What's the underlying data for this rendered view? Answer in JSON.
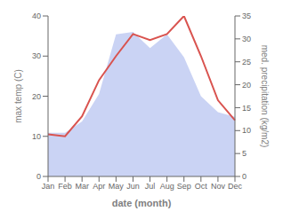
{
  "chart_data": {
    "type": "line",
    "categories": [
      "Jan",
      "Feb",
      "Mar",
      "Apr",
      "May",
      "Jun",
      "Jul",
      "Aug",
      "Sep",
      "Oct",
      "Nov",
      "Dec"
    ],
    "series": [
      {
        "type": "area",
        "color": "#b8c4f0",
        "axis": "y2",
        "values": [
          9.5,
          9.5,
          12.0,
          18.0,
          31.0,
          31.5,
          28.0,
          31.0,
          26.0,
          17.5,
          14.0,
          13.0
        ]
      },
      {
        "type": "line",
        "color": "#d9534f",
        "values": [
          10.5,
          10.0,
          15.0,
          24.0,
          30.0,
          35.5,
          34.0,
          35.5,
          40.0,
          30.0,
          19.0,
          14.0
        ]
      }
    ],
    "xlabel": "date (month)",
    "ylabel": "max temp (C)",
    "y2label": "med. precipitation (kg/m2)",
    "ylim": [
      0,
      40
    ],
    "yticks": [
      0,
      10,
      20,
      30,
      40
    ],
    "y2lim": [
      0,
      35
    ],
    "y2ticks": [
      0,
      5,
      10,
      15,
      20,
      25,
      30,
      35
    ],
    "grid": false
  }
}
